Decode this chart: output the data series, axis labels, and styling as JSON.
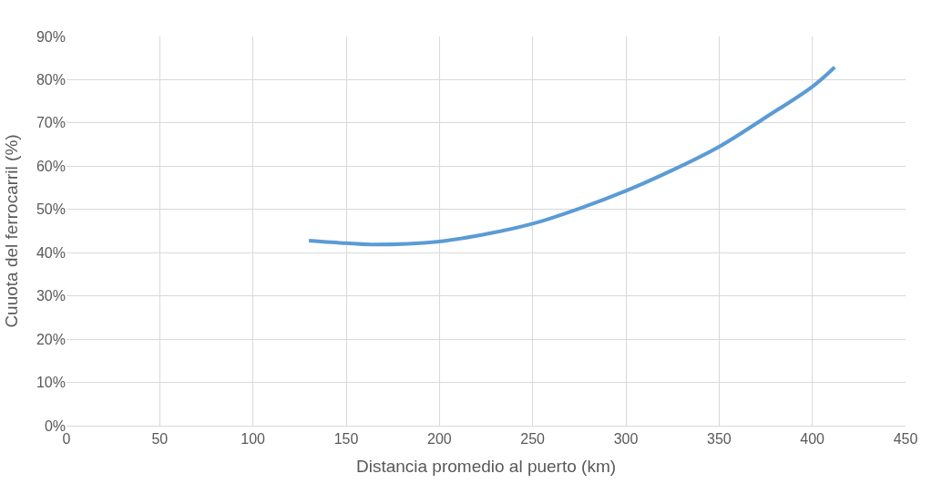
{
  "chart_data": {
    "type": "line",
    "xlabel": "Distancia promedio al puerto (km)",
    "ylabel": "Cuuota del ferrocarril (%)",
    "x": [
      130,
      150,
      163,
      200,
      225,
      250,
      275,
      300,
      325,
      350,
      375,
      400,
      412
    ],
    "series": [
      {
        "color": "#5b9bd5",
        "values": [
          42.8,
          42.2,
          41.9,
          42.6,
          44.3,
          46.7,
          50.2,
          54.3,
          59.1,
          64.5,
          71.3,
          78.4,
          82.9
        ]
      }
    ],
    "xlim": [
      0,
      450
    ],
    "xticks": [
      0,
      50,
      100,
      150,
      200,
      250,
      300,
      350,
      400,
      450
    ],
    "ylim": [
      0,
      90
    ],
    "yticks": [
      {
        "value": 0,
        "label": "0%"
      },
      {
        "value": 10,
        "label": "10%"
      },
      {
        "value": 20,
        "label": "20%"
      },
      {
        "value": 30,
        "label": "30%"
      },
      {
        "value": 40,
        "label": "40%"
      },
      {
        "value": 50,
        "label": "50%"
      },
      {
        "value": 60,
        "label": "60%"
      },
      {
        "value": 70,
        "label": "70%"
      },
      {
        "value": 80,
        "label": "80%"
      },
      {
        "value": 90,
        "label": "90%"
      }
    ],
    "grid": true,
    "marker": "none",
    "line_style": "solid"
  }
}
